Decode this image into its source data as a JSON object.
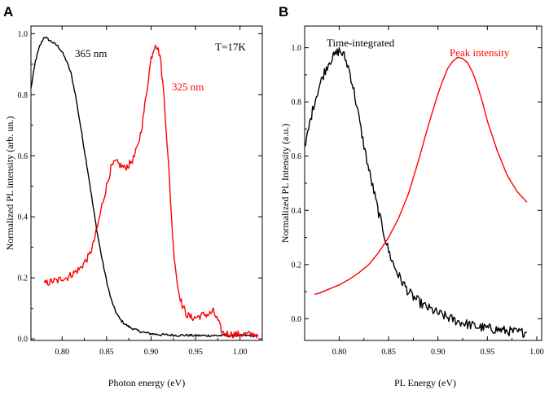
{
  "chart_data": [
    {
      "panel": "A",
      "type": "line",
      "xlabel": "Photon energy (eV)",
      "ylabel": "Normalized PL intensity (arb. un.)",
      "xlim": [
        0.765,
        1.025
      ],
      "ylim": [
        -0.005,
        1.025
      ],
      "x_ticks": [
        "0.80",
        "0.85",
        "0.90",
        "0.95",
        "1.00"
      ],
      "y_ticks": [
        "0.0",
        "0.2",
        "0.4",
        "0.6",
        "0.8",
        "1.0"
      ],
      "corner_annotation": "T=17K",
      "series": [
        {
          "name": "365 nm",
          "color": "#000000",
          "x": [
            0.765,
            0.77,
            0.775,
            0.78,
            0.785,
            0.79,
            0.795,
            0.8,
            0.805,
            0.81,
            0.815,
            0.82,
            0.825,
            0.83,
            0.835,
            0.84,
            0.845,
            0.85,
            0.855,
            0.86,
            0.865,
            0.87,
            0.875,
            0.88,
            0.885,
            0.89,
            0.9,
            0.91,
            0.92,
            0.93,
            0.94,
            0.95,
            0.96,
            0.97,
            0.98,
            0.99,
            1.0,
            1.01,
            1.02
          ],
          "y": [
            0.82,
            0.91,
            0.96,
            0.99,
            0.98,
            0.97,
            0.96,
            0.94,
            0.91,
            0.87,
            0.8,
            0.71,
            0.62,
            0.53,
            0.43,
            0.34,
            0.26,
            0.19,
            0.13,
            0.09,
            0.065,
            0.05,
            0.04,
            0.033,
            0.027,
            0.022,
            0.017,
            0.014,
            0.013,
            0.012,
            0.012,
            0.011,
            0.011,
            0.011,
            0.011,
            0.011,
            0.011,
            0.011,
            0.011
          ]
        },
        {
          "name": "325 nm",
          "color": "#ff0000",
          "x": [
            0.78,
            0.785,
            0.79,
            0.795,
            0.8,
            0.805,
            0.81,
            0.815,
            0.82,
            0.825,
            0.83,
            0.835,
            0.84,
            0.845,
            0.85,
            0.855,
            0.86,
            0.865,
            0.87,
            0.875,
            0.88,
            0.885,
            0.89,
            0.895,
            0.9,
            0.905,
            0.91,
            0.915,
            0.92,
            0.925,
            0.93,
            0.935,
            0.94,
            0.945,
            0.95,
            0.955,
            0.96,
            0.965,
            0.97,
            0.975,
            0.98,
            0.99,
            1.0,
            1.01,
            1.02
          ],
          "y": [
            0.18,
            0.185,
            0.19,
            0.19,
            0.2,
            0.2,
            0.21,
            0.22,
            0.23,
            0.25,
            0.27,
            0.31,
            0.37,
            0.44,
            0.5,
            0.56,
            0.58,
            0.57,
            0.56,
            0.57,
            0.59,
            0.63,
            0.7,
            0.81,
            0.92,
            0.97,
            0.93,
            0.78,
            0.55,
            0.3,
            0.17,
            0.11,
            0.08,
            0.07,
            0.07,
            0.075,
            0.08,
            0.08,
            0.09,
            0.06,
            0.02,
            0.015,
            0.015,
            0.015,
            0.015
          ]
        }
      ]
    },
    {
      "panel": "B",
      "type": "line",
      "xlabel": "PL Energy (eV)",
      "ylabel": "Normalized PL Intensity (a.u.)",
      "xlim": [
        0.765,
        1.005
      ],
      "ylim": [
        -0.08,
        1.08
      ],
      "x_ticks": [
        "0.80",
        "0.85",
        "0.90",
        "0.95",
        "1.00"
      ],
      "y_ticks": [
        "0.0",
        "0.2",
        "0.4",
        "0.6",
        "0.8",
        "1.0"
      ],
      "series": [
        {
          "name": "Time-integrated",
          "color": "#000000",
          "x": [
            0.765,
            0.77,
            0.775,
            0.78,
            0.785,
            0.79,
            0.795,
            0.8,
            0.805,
            0.81,
            0.815,
            0.82,
            0.825,
            0.83,
            0.835,
            0.84,
            0.845,
            0.85,
            0.855,
            0.86,
            0.865,
            0.87,
            0.875,
            0.88,
            0.885,
            0.89,
            0.895,
            0.9,
            0.91,
            0.92,
            0.93,
            0.94,
            0.95,
            0.96,
            0.97,
            0.98,
            0.99
          ],
          "y": [
            0.62,
            0.72,
            0.8,
            0.86,
            0.91,
            0.95,
            0.97,
            0.99,
            0.97,
            0.92,
            0.84,
            0.74,
            0.64,
            0.55,
            0.47,
            0.39,
            0.32,
            0.25,
            0.2,
            0.16,
            0.13,
            0.1,
            0.08,
            0.065,
            0.05,
            0.04,
            0.03,
            0.02,
            0.005,
            -0.01,
            -0.02,
            -0.03,
            -0.035,
            -0.04,
            -0.045,
            -0.05,
            -0.05
          ]
        },
        {
          "name": "Peak intensity",
          "color": "#ff0000",
          "x": [
            0.775,
            0.78,
            0.79,
            0.8,
            0.81,
            0.82,
            0.83,
            0.84,
            0.85,
            0.86,
            0.87,
            0.88,
            0.89,
            0.9,
            0.905,
            0.91,
            0.915,
            0.92,
            0.925,
            0.93,
            0.935,
            0.94,
            0.945,
            0.95,
            0.96,
            0.97,
            0.98,
            0.99
          ],
          "y": [
            0.09,
            0.095,
            0.11,
            0.125,
            0.145,
            0.17,
            0.2,
            0.245,
            0.3,
            0.37,
            0.46,
            0.58,
            0.71,
            0.83,
            0.88,
            0.925,
            0.95,
            0.965,
            0.96,
            0.945,
            0.91,
            0.86,
            0.8,
            0.73,
            0.62,
            0.53,
            0.47,
            0.43
          ]
        }
      ]
    }
  ]
}
